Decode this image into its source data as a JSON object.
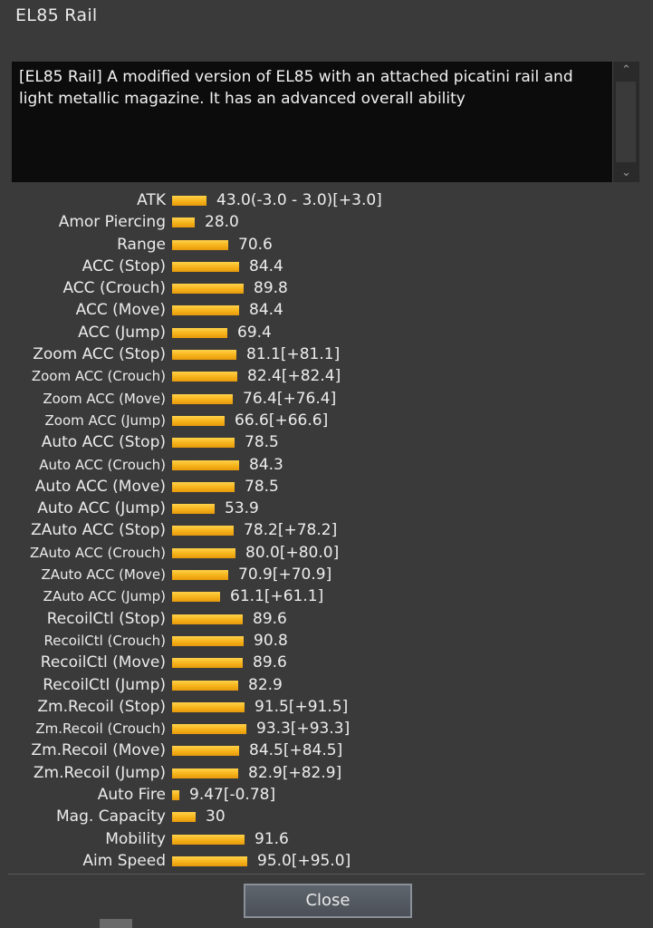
{
  "window": {
    "title": "EL85 Rail"
  },
  "description": "[EL85 Rail] A modified version of EL85 with an attached picatini rail and light metallic magazine. It has an advanced overall ability",
  "scroll": {
    "up_icon": "chevron-up-icon",
    "down_icon": "chevron-down-icon"
  },
  "colors": {
    "bar": "#f6b21a",
    "background": "#3a3a3a",
    "desc_bg": "#0c0c0c"
  },
  "stats": [
    {
      "label": "ATK",
      "value": "43.0(-3.0 - 3.0)[+3.0]",
      "level": 43.0,
      "small": false
    },
    {
      "label": "Amor Piercing",
      "value": "28.0",
      "level": 28.0,
      "small": false
    },
    {
      "label": "Range",
      "value": "70.6",
      "level": 70.6,
      "small": false
    },
    {
      "label": "ACC (Stop)",
      "value": "84.4",
      "level": 84.4,
      "small": false
    },
    {
      "label": "ACC (Crouch)",
      "value": "89.8",
      "level": 89.8,
      "small": false
    },
    {
      "label": "ACC (Move)",
      "value": "84.4",
      "level": 84.4,
      "small": false
    },
    {
      "label": "ACC (Jump)",
      "value": "69.4",
      "level": 69.4,
      "small": false
    },
    {
      "label": "Zoom ACC (Stop)",
      "value": "81.1[+81.1]",
      "level": 81.1,
      "small": false
    },
    {
      "label": "Zoom ACC (Crouch)",
      "value": "82.4[+82.4]",
      "level": 82.4,
      "small": true
    },
    {
      "label": "Zoom ACC (Move)",
      "value": "76.4[+76.4]",
      "level": 76.4,
      "small": true
    },
    {
      "label": "Zoom ACC (Jump)",
      "value": "66.6[+66.6]",
      "level": 66.6,
      "small": true
    },
    {
      "label": "Auto ACC (Stop)",
      "value": "78.5",
      "level": 78.5,
      "small": false
    },
    {
      "label": "Auto ACC (Crouch)",
      "value": "84.3",
      "level": 84.3,
      "small": true
    },
    {
      "label": "Auto ACC (Move)",
      "value": "78.5",
      "level": 78.5,
      "small": false
    },
    {
      "label": "Auto ACC (Jump)",
      "value": "53.9",
      "level": 53.9,
      "small": false
    },
    {
      "label": "ZAuto ACC (Stop)",
      "value": "78.2[+78.2]",
      "level": 78.2,
      "small": false
    },
    {
      "label": "ZAuto ACC (Crouch)",
      "value": "80.0[+80.0]",
      "level": 80.0,
      "small": true
    },
    {
      "label": "ZAuto ACC (Move)",
      "value": "70.9[+70.9]",
      "level": 70.9,
      "small": true
    },
    {
      "label": "ZAuto ACC (Jump)",
      "value": "61.1[+61.1]",
      "level": 61.1,
      "small": true
    },
    {
      "label": "RecoilCtl (Stop)",
      "value": "89.6",
      "level": 89.6,
      "small": false
    },
    {
      "label": "RecoilCtl (Crouch)",
      "value": "90.8",
      "level": 90.8,
      "small": true
    },
    {
      "label": "RecoilCtl (Move)",
      "value": "89.6",
      "level": 89.6,
      "small": false
    },
    {
      "label": "RecoilCtl (Jump)",
      "value": "82.9",
      "level": 82.9,
      "small": false
    },
    {
      "label": "Zm.Recoil (Stop)",
      "value": "91.5[+91.5]",
      "level": 91.5,
      "small": false
    },
    {
      "label": "Zm.Recoil (Crouch)",
      "value": "93.3[+93.3]",
      "level": 93.3,
      "small": true
    },
    {
      "label": "Zm.Recoil (Move)",
      "value": "84.5[+84.5]",
      "level": 84.5,
      "small": false
    },
    {
      "label": "Zm.Recoil (Jump)",
      "value": "82.9[+82.9]",
      "level": 82.9,
      "small": false
    },
    {
      "label": "Auto Fire",
      "value": "9.47[-0.78]",
      "level": 9.47,
      "small": false
    },
    {
      "label": "Mag. Capacity",
      "value": "30",
      "level": 30,
      "small": false
    },
    {
      "label": "Mobility",
      "value": "91.6",
      "level": 91.6,
      "small": false
    },
    {
      "label": "Aim Speed",
      "value": "95.0[+95.0]",
      "level": 95.0,
      "small": false
    }
  ],
  "footer": {
    "close_label": "Close"
  }
}
